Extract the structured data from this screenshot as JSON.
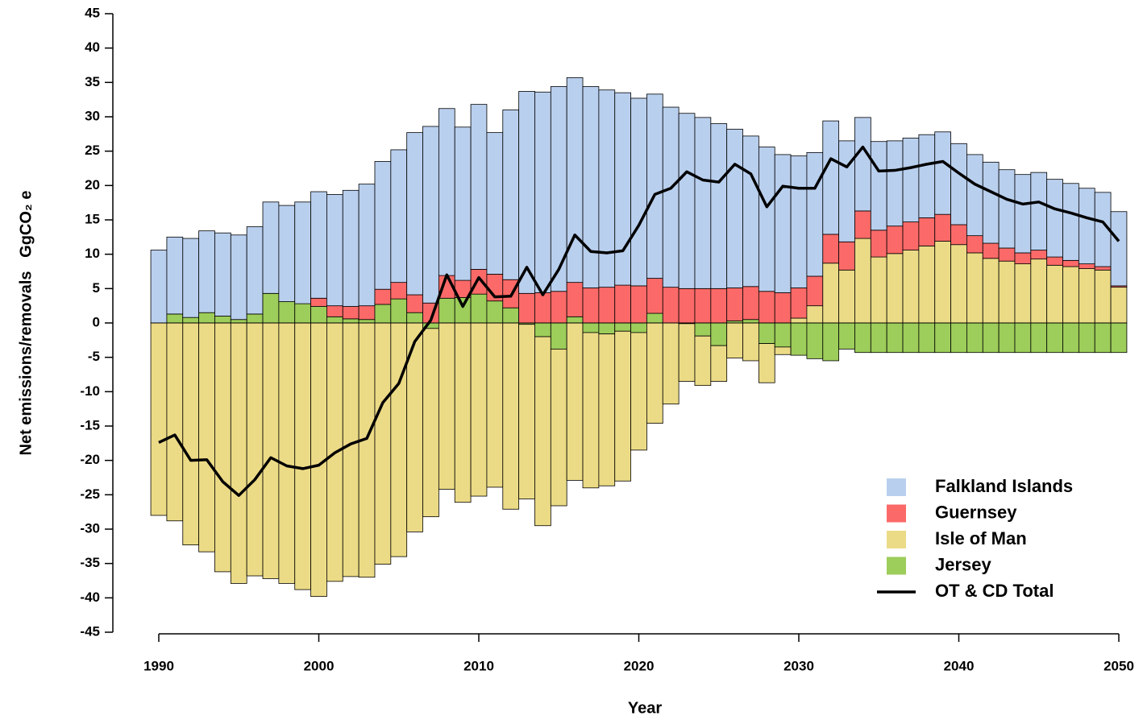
{
  "chart_data": {
    "type": "bar",
    "x_label": "Year",
    "y_label": "Net emissions/removals   GgCO₂ e",
    "x": [
      1990,
      1991,
      1992,
      1993,
      1994,
      1995,
      1996,
      1997,
      1998,
      1999,
      2000,
      2001,
      2002,
      2003,
      2004,
      2005,
      2006,
      2007,
      2008,
      2009,
      2010,
      2011,
      2012,
      2013,
      2014,
      2015,
      2016,
      2017,
      2018,
      2019,
      2020,
      2021,
      2022,
      2023,
      2024,
      2025,
      2026,
      2027,
      2028,
      2029,
      2030,
      2031,
      2032,
      2033,
      2034,
      2035,
      2036,
      2037,
      2038,
      2039,
      2040,
      2041,
      2042,
      2043,
      2044,
      2045,
      2046,
      2047,
      2048,
      2049,
      2050
    ],
    "series": [
      {
        "name": "Falkland Islands",
        "color": "#b9cfee",
        "values": [
          10.6,
          11.2,
          11.5,
          11.9,
          12.1,
          12.3,
          12.7,
          13.3,
          14.0,
          14.8,
          15.5,
          16.2,
          16.9,
          17.7,
          18.6,
          19.3,
          23.6,
          25.7,
          24.3,
          22.3,
          24.0,
          20.6,
          24.7,
          29.4,
          29.2,
          29.8,
          29.8,
          29.3,
          28.7,
          28.0,
          27.3,
          26.8,
          26.2,
          25.5,
          24.9,
          24.0,
          23.1,
          21.9,
          21.0,
          20.1,
          19.2,
          18.0,
          16.5,
          14.7,
          13.6,
          12.9,
          12.4,
          12.2,
          12.1,
          12.0,
          11.8,
          11.8,
          11.8,
          11.4,
          11.4,
          11.3,
          11.3,
          11.2,
          11.0,
          10.8,
          10.8
        ]
      },
      {
        "name": "Guernsey",
        "color": "#fb6a68",
        "values": [
          0,
          0,
          0,
          0,
          0,
          0,
          0,
          0,
          0,
          0,
          1.2,
          1.6,
          1.8,
          2.0,
          2.2,
          2.4,
          2.6,
          2.9,
          3.3,
          2.5,
          3.6,
          3.9,
          4.1,
          4.3,
          4.4,
          4.6,
          5.0,
          5.1,
          5.2,
          5.5,
          5.4,
          5.1,
          5.2,
          5.0,
          5.0,
          5.0,
          4.8,
          4.8,
          4.6,
          4.4,
          4.4,
          4.3,
          4.2,
          4.1,
          4.0,
          3.9,
          4.0,
          4.1,
          4.1,
          3.9,
          2.9,
          2.5,
          2.2,
          1.9,
          1.6,
          1.3,
          1.2,
          0.9,
          0.7,
          0.5,
          0.2
        ]
      },
      {
        "name": "Isle of Man",
        "color": "#ecdb86",
        "values": [
          -28,
          -28.8,
          -32.3,
          -33.3,
          -36.2,
          -37.9,
          -36.8,
          -37.2,
          -37.9,
          -38.8,
          -39.8,
          -37.6,
          -36.9,
          -37.0,
          -35.1,
          -34.0,
          -30.4,
          -27.4,
          -24.2,
          -26.1,
          -25.2,
          -23.9,
          -27.1,
          -25.4,
          -27.5,
          -22.8,
          -22.9,
          -22.6,
          -22.1,
          -21.8,
          -17.1,
          -14.6,
          -11.8,
          -8.4,
          -7.2,
          -5.2,
          -5.1,
          -5.5,
          -5.7,
          -1.1,
          0.7,
          2.5,
          8.7,
          7.7,
          12.3,
          9.6,
          10.1,
          10.6,
          11.2,
          11.9,
          11.4,
          10.2,
          9.4,
          9.0,
          8.6,
          9.3,
          8.4,
          8.2,
          7.9,
          7.7,
          5.2
        ]
      },
      {
        "name": "Jersey",
        "color": "#9dcd5a",
        "values": [
          0,
          1.3,
          0.8,
          1.5,
          1.0,
          0.5,
          1.3,
          4.3,
          3.1,
          2.8,
          2.4,
          0.9,
          0.6,
          0.5,
          2.7,
          3.5,
          1.5,
          -0.8,
          3.6,
          3.7,
          4.2,
          3.2,
          2.2,
          -0.2,
          -2.0,
          -3.8,
          0.9,
          -1.4,
          -1.6,
          -1.2,
          -1.4,
          1.4,
          0,
          -0.1,
          -1.9,
          -3.3,
          0.3,
          0.5,
          -3.0,
          -3.5,
          -4.7,
          -5.2,
          -5.5,
          -3.8,
          -4.3,
          -4.3,
          -4.3,
          -4.3,
          -4.3,
          -4.3,
          -4.3,
          -4.3,
          -4.3,
          -4.3,
          -4.3,
          -4.3,
          -4.3,
          -4.3,
          -4.3,
          -4.3,
          -4.3
        ]
      },
      {
        "name": "OT & CD Total",
        "type": "line",
        "color": "#000000",
        "values": [
          -17.4,
          -16.3,
          -20.0,
          -19.9,
          -23.1,
          -25.1,
          -22.8,
          -19.6,
          -20.8,
          -21.2,
          -20.7,
          -18.9,
          -17.6,
          -16.8,
          -11.6,
          -8.8,
          -2.7,
          0.4,
          7.0,
          2.4,
          6.6,
          3.8,
          3.9,
          8.1,
          4.1,
          7.8,
          12.8,
          10.4,
          10.2,
          10.5,
          14.2,
          18.7,
          19.6,
          22.0,
          20.8,
          20.5,
          23.1,
          21.7,
          16.9,
          19.9,
          19.6,
          19.6,
          23.9,
          22.7,
          25.6,
          22.1,
          22.2,
          22.6,
          23.1,
          23.5,
          21.8,
          20.2,
          19.1,
          18.0,
          17.3,
          17.6,
          16.6,
          16.0,
          15.3,
          14.7,
          11.9
        ]
      }
    ],
    "xlim": [
      1990,
      2050
    ],
    "xticks": [
      1990,
      2000,
      2010,
      2020,
      2030,
      2040,
      2050
    ],
    "ylim": [
      -45,
      45
    ],
    "yticks": [
      -45,
      -40,
      -35,
      -30,
      -25,
      -20,
      -15,
      -10,
      -5,
      0,
      5,
      10,
      15,
      20,
      25,
      30,
      35,
      40,
      45
    ],
    "grid": false,
    "legend": "lower right"
  }
}
